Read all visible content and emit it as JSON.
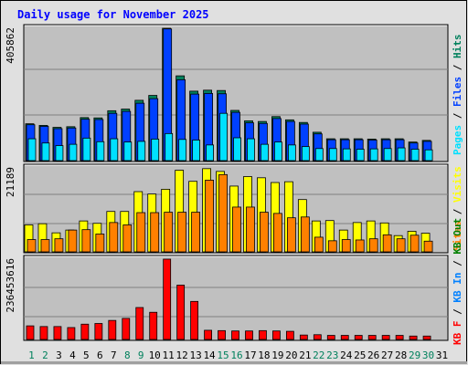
{
  "title": "Daily usage for November 2025",
  "colors": {
    "background": "#e0e0e0",
    "panel": "#c0c0c0",
    "title": "#0000ff",
    "hits": "#00805c",
    "files": "#0040ff",
    "pages": "#00e0ff",
    "visits": "#ffff00",
    "sites": "#ff8000",
    "kbin": "#0080ff",
    "kbout": "#008000",
    "kbf": "#ff0000",
    "weekend": "#00805c",
    "weekday": "#000000"
  },
  "chart_data": [
    {
      "type": "bar",
      "panel": "top",
      "ymax_label": "405862",
      "ylim": [
        0,
        405862
      ],
      "legend": [
        "Pages",
        "Files",
        "Hits"
      ],
      "categories": [
        "1",
        "2",
        "3",
        "4",
        "5",
        "6",
        "7",
        "8",
        "9",
        "10",
        "11",
        "12",
        "13",
        "14",
        "15",
        "16",
        "17",
        "18",
        "19",
        "20",
        "21",
        "22",
        "23",
        "24",
        "25",
        "26",
        "27",
        "28",
        "29",
        "30",
        "31"
      ],
      "weekend_days": [
        "1",
        "2",
        "8",
        "9",
        "15",
        "16",
        "22",
        "23",
        "29",
        "30"
      ],
      "series": [
        {
          "name": "Hits",
          "values": [
            113000,
            108000,
            102000,
            104000,
            132000,
            131000,
            153000,
            158000,
            185000,
            200000,
            405862,
            260000,
            213000,
            216000,
            215000,
            154000,
            122000,
            120000,
            135000,
            125000,
            117000,
            87000,
            67000,
            67000,
            67000,
            66000,
            67000,
            67000,
            57000,
            62000,
            0
          ]
        },
        {
          "name": "Files",
          "values": [
            110000,
            105000,
            98000,
            100000,
            127000,
            126000,
            145000,
            151000,
            176000,
            190000,
            404000,
            248000,
            204000,
            206000,
            205000,
            148000,
            116000,
            114000,
            129000,
            120000,
            112000,
            82000,
            64000,
            64000,
            64000,
            63000,
            64000,
            64000,
            54000,
            59000,
            0
          ]
        },
        {
          "name": "Pages",
          "values": [
            67000,
            54000,
            46000,
            50000,
            69000,
            58000,
            67000,
            57000,
            59000,
            66000,
            83000,
            65000,
            63000,
            48000,
            145000,
            70000,
            67000,
            50000,
            57000,
            48000,
            43000,
            37000,
            37000,
            36000,
            35000,
            36000,
            37000,
            39000,
            35000,
            33000,
            0
          ]
        }
      ]
    },
    {
      "type": "bar",
      "panel": "middle",
      "ymax_label": "21189",
      "ylim": [
        0,
        21189
      ],
      "legend": [
        "Sites",
        "Visits"
      ],
      "categories": [
        "1",
        "2",
        "3",
        "4",
        "5",
        "6",
        "7",
        "8",
        "9",
        "10",
        "11",
        "12",
        "13",
        "14",
        "15",
        "16",
        "17",
        "18",
        "19",
        "20",
        "21",
        "22",
        "23",
        "24",
        "25",
        "26",
        "27",
        "28",
        "29",
        "30",
        "31"
      ],
      "series": [
        {
          "name": "Visits",
          "values": [
            6800,
            7100,
            4800,
            5500,
            7800,
            7200,
            10200,
            10200,
            15200,
            14600,
            15800,
            20600,
            17800,
            21000,
            20300,
            16600,
            19000,
            18700,
            17500,
            17700,
            13200,
            7800,
            7900,
            5500,
            7400,
            7800,
            7300,
            4100,
            5200,
            4700,
            0
          ]
        },
        {
          "name": "Sites",
          "values": [
            3100,
            3100,
            3300,
            5500,
            5600,
            4500,
            7400,
            6800,
            9900,
            9900,
            10000,
            10000,
            10000,
            18100,
            19500,
            11300,
            11300,
            10000,
            9700,
            8600,
            8800,
            3700,
            2800,
            3100,
            3000,
            3300,
            4300,
            3300,
            4200,
            2700,
            0
          ]
        }
      ]
    },
    {
      "type": "bar",
      "panel": "bottom",
      "ymax_label": "236453616",
      "ylim": [
        0,
        236453616
      ],
      "legend": [
        "KB F",
        "KB In",
        "KB Out"
      ],
      "categories": [
        "1",
        "2",
        "3",
        "4",
        "5",
        "6",
        "7",
        "8",
        "9",
        "10",
        "11",
        "12",
        "13",
        "14",
        "15",
        "16",
        "17",
        "18",
        "19",
        "20",
        "21",
        "22",
        "23",
        "24",
        "25",
        "26",
        "27",
        "28",
        "29",
        "30",
        "31"
      ],
      "series": [
        {
          "name": "KB F",
          "values": [
            40000000,
            38000000,
            38000000,
            35000000,
            45000000,
            47000000,
            56000000,
            62000000,
            94000000,
            80000000,
            236453616,
            160000000,
            112000000,
            27000000,
            26000000,
            25000000,
            25000000,
            26000000,
            25000000,
            24000000,
            13000000,
            14000000,
            12000000,
            12000000,
            12000000,
            12000000,
            12000000,
            12000000,
            10000000,
            10000000,
            0
          ]
        }
      ]
    }
  ]
}
